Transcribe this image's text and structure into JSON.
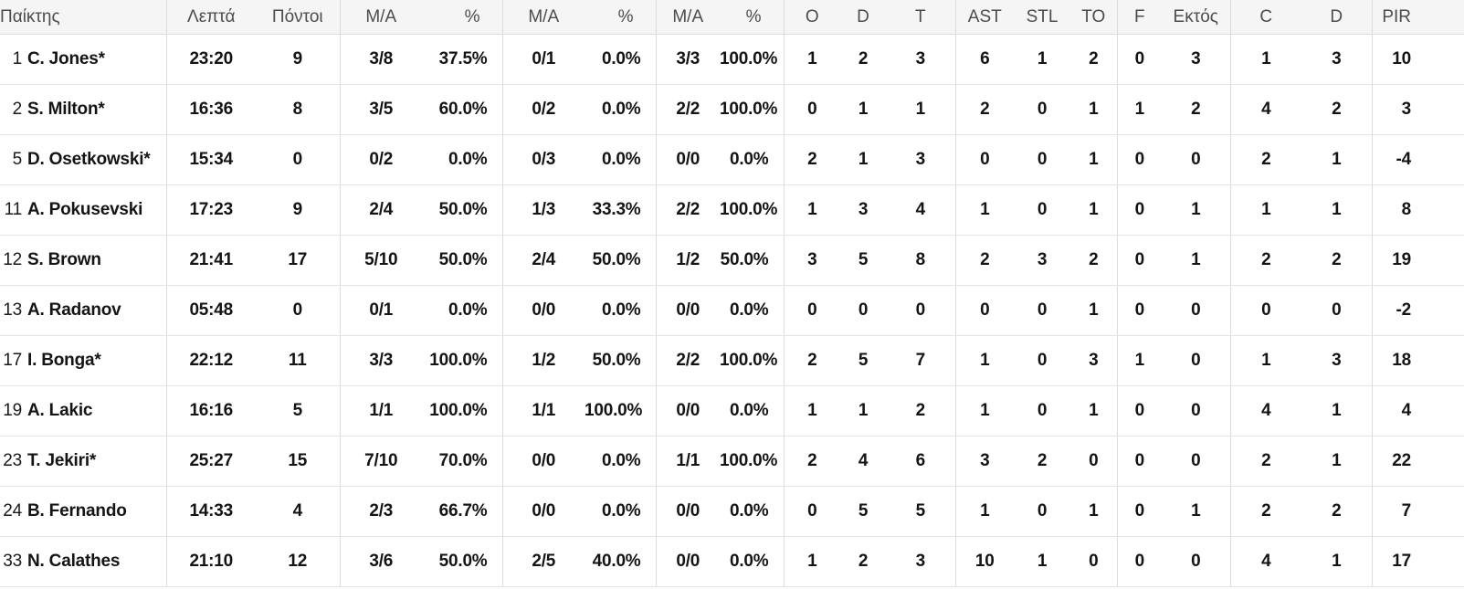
{
  "table": {
    "columns": [
      {
        "key": "player",
        "label": "Παίκτης"
      },
      {
        "key": "minutes",
        "label": "Λεπτά"
      },
      {
        "key": "points",
        "label": "Πόντοι"
      },
      {
        "key": "fg2-ma",
        "label": "Μ/Α"
      },
      {
        "key": "fg2-pct",
        "label": "%"
      },
      {
        "key": "fg3-ma",
        "label": "Μ/Α"
      },
      {
        "key": "fg3-pct",
        "label": "%"
      },
      {
        "key": "ft-ma",
        "label": "Μ/Α"
      },
      {
        "key": "ft-pct",
        "label": "%"
      },
      {
        "key": "reb-o",
        "label": "O"
      },
      {
        "key": "reb-d",
        "label": "D"
      },
      {
        "key": "reb-t",
        "label": "T"
      },
      {
        "key": "ast",
        "label": "AST"
      },
      {
        "key": "stl",
        "label": "STL"
      },
      {
        "key": "to",
        "label": "TO"
      },
      {
        "key": "fouls",
        "label": "F"
      },
      {
        "key": "fouls-on",
        "label": "Εκτός"
      },
      {
        "key": "c",
        "label": "C"
      },
      {
        "key": "d",
        "label": "D"
      },
      {
        "key": "pir",
        "label": "PIR"
      }
    ],
    "rows": [
      {
        "number": "1",
        "name": "C. Jones*",
        "stats": [
          "23:20",
          "9",
          "3/8",
          "37.5%",
          "0/1",
          "0.0%",
          "3/3",
          "100.0%",
          "1",
          "2",
          "3",
          "6",
          "1",
          "2",
          "0",
          "3",
          "1",
          "3",
          "10"
        ]
      },
      {
        "number": "2",
        "name": "S. Milton*",
        "stats": [
          "16:36",
          "8",
          "3/5",
          "60.0%",
          "0/2",
          "0.0%",
          "2/2",
          "100.0%",
          "0",
          "1",
          "1",
          "2",
          "0",
          "1",
          "1",
          "2",
          "4",
          "2",
          "3"
        ]
      },
      {
        "number": "5",
        "name": "D. Osetkowski*",
        "stats": [
          "15:34",
          "0",
          "0/2",
          "0.0%",
          "0/3",
          "0.0%",
          "0/0",
          "0.0%",
          "2",
          "1",
          "3",
          "0",
          "0",
          "1",
          "0",
          "0",
          "2",
          "1",
          "-4"
        ]
      },
      {
        "number": "11",
        "name": "A. Pokusevski",
        "stats": [
          "17:23",
          "9",
          "2/4",
          "50.0%",
          "1/3",
          "33.3%",
          "2/2",
          "100.0%",
          "1",
          "3",
          "4",
          "1",
          "0",
          "1",
          "0",
          "1",
          "1",
          "1",
          "8"
        ]
      },
      {
        "number": "12",
        "name": "S. Brown",
        "stats": [
          "21:41",
          "17",
          "5/10",
          "50.0%",
          "2/4",
          "50.0%",
          "1/2",
          "50.0%",
          "3",
          "5",
          "8",
          "2",
          "3",
          "2",
          "0",
          "1",
          "2",
          "2",
          "19"
        ]
      },
      {
        "number": "13",
        "name": "A. Radanov",
        "stats": [
          "05:48",
          "0",
          "0/1",
          "0.0%",
          "0/0",
          "0.0%",
          "0/0",
          "0.0%",
          "0",
          "0",
          "0",
          "0",
          "0",
          "1",
          "0",
          "0",
          "0",
          "0",
          "-2"
        ]
      },
      {
        "number": "17",
        "name": "I. Bonga*",
        "stats": [
          "22:12",
          "11",
          "3/3",
          "100.0%",
          "1/2",
          "50.0%",
          "2/2",
          "100.0%",
          "2",
          "5",
          "7",
          "1",
          "0",
          "3",
          "1",
          "0",
          "1",
          "3",
          "18"
        ]
      },
      {
        "number": "19",
        "name": "A. Lakic",
        "stats": [
          "16:16",
          "5",
          "1/1",
          "100.0%",
          "1/1",
          "100.0%",
          "0/0",
          "0.0%",
          "1",
          "1",
          "2",
          "1",
          "0",
          "1",
          "0",
          "0",
          "4",
          "1",
          "4"
        ]
      },
      {
        "number": "23",
        "name": "T. Jekiri*",
        "stats": [
          "25:27",
          "15",
          "7/10",
          "70.0%",
          "0/0",
          "0.0%",
          "1/1",
          "100.0%",
          "2",
          "4",
          "6",
          "3",
          "2",
          "0",
          "0",
          "0",
          "2",
          "1",
          "22"
        ]
      },
      {
        "number": "24",
        "name": "B. Fernando",
        "stats": [
          "14:33",
          "4",
          "2/3",
          "66.7%",
          "0/0",
          "0.0%",
          "0/0",
          "0.0%",
          "0",
          "5",
          "5",
          "1",
          "0",
          "1",
          "0",
          "1",
          "2",
          "2",
          "7"
        ]
      },
      {
        "number": "33",
        "name": "N. Calathes",
        "stats": [
          "21:10",
          "12",
          "3/6",
          "50.0%",
          "2/5",
          "40.0%",
          "0/0",
          "0.0%",
          "1",
          "2",
          "3",
          "10",
          "1",
          "0",
          "0",
          "0",
          "4",
          "1",
          "17"
        ]
      }
    ]
  }
}
